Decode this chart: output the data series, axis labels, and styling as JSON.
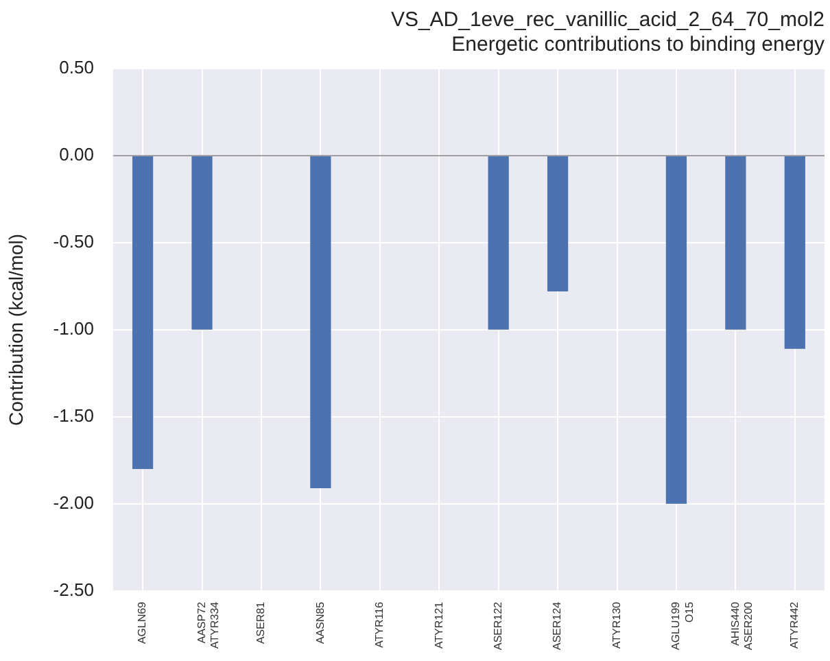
{
  "chart_data": {
    "type": "bar",
    "title": "VS_AD_1eve_rec_vanillic_acid_2_64_70_mol2",
    "subtitle": "Energetic contributions to binding energy",
    "ylabel": "Contribution (kcal/mol)",
    "categories": [
      "AGLN69",
      "AASP72\nATYR334",
      "ASER81",
      "AASN85",
      "ATYR116",
      "ATYR121",
      "ASER122",
      "ASER124",
      "ATYR130",
      "AGLU199\nO15",
      "AHIS440\nASER200",
      "ATYR442"
    ],
    "values": [
      -1.8,
      -1.0,
      0,
      -1.91,
      0,
      0,
      -1.0,
      -0.78,
      0,
      -2.0,
      -1.0,
      -1.11
    ],
    "color": "#4c72b0",
    "ylim": [
      -2.5,
      0.5
    ],
    "yticks": [
      {
        "value": -2.5,
        "label": "-2.50"
      },
      {
        "value": -2,
        "label": "-2.00"
      },
      {
        "value": -1.5,
        "label": "-1.50"
      },
      {
        "value": -1,
        "label": "-1.00"
      },
      {
        "value": -0.5,
        "label": "-0.50"
      },
      {
        "value": 0,
        "label": "0.00"
      },
      {
        "value": 0.5,
        "label": "0.50"
      }
    ],
    "ref_lines": [
      {
        "axis": "y",
        "value": 0,
        "color": "#a0a0a0"
      }
    ],
    "grid": true
  }
}
